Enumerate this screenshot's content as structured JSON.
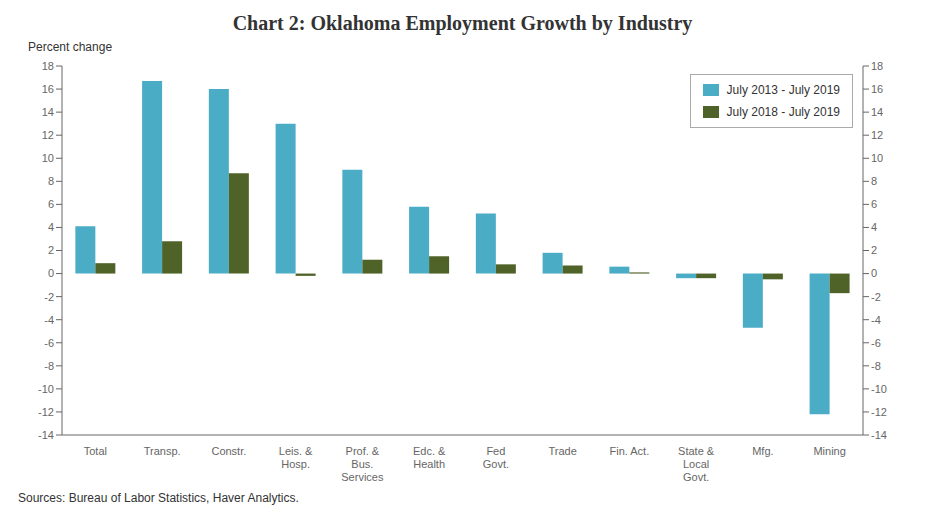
{
  "chart_data": {
    "type": "bar",
    "title": "Chart 2: Oklahoma Employment Growth by Industry",
    "ylabel": "Percent change",
    "source": "Sources: Bureau of Labor Statistics, Haver Analytics.",
    "categories": [
      "Total",
      "Transp.",
      "Constr.",
      "Leis. &\nHosp.",
      "Prof. &\nBus.\nServices",
      "Edc. &\nHealth",
      "Fed\nGovt.",
      "Trade",
      "Fin. Act.",
      "State &\nLocal\nGovt.",
      "Mfg.",
      "Mining"
    ],
    "series": [
      {
        "name": "July 2013 - July 2019",
        "color": "#4bacc6",
        "values": [
          4.1,
          16.7,
          16.0,
          13.0,
          9.0,
          5.8,
          5.2,
          1.8,
          0.6,
          -0.4,
          -4.7,
          -12.2
        ]
      },
      {
        "name": "July 2018 - July 2019",
        "color": "#4f6228",
        "values": [
          0.9,
          2.8,
          8.7,
          -0.2,
          1.2,
          1.5,
          0.8,
          0.7,
          0.1,
          -0.4,
          -0.5,
          -1.7
        ]
      }
    ],
    "ylim": [
      -14,
      18
    ],
    "yticks": [
      -14,
      -12,
      -10,
      -8,
      -6,
      -4,
      -2,
      0,
      2,
      4,
      6,
      8,
      10,
      12,
      14,
      16,
      18
    ],
    "y2lim": [
      -14,
      18
    ],
    "y2ticks": [
      -14,
      -12,
      -10,
      -8,
      -6,
      -4,
      -2,
      0,
      2,
      4,
      6,
      8,
      10,
      12,
      14,
      16,
      18
    ],
    "grid": false,
    "legend": "upper right"
  }
}
